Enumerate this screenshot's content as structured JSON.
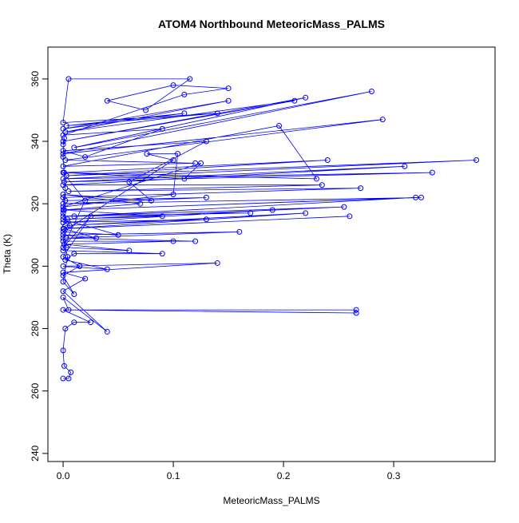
{
  "chart_data": {
    "type": "line",
    "title": "ATOM4 Northbound MeteoricMass_PALMS",
    "x_label": "MeteoricMass_PALMS",
    "y_label": "Theta (K)",
    "xlim": [
      -0.0138,
      0.392
    ],
    "ylim": [
      237.4,
      370.2
    ],
    "xticks": [
      {
        "value": 0,
        "label": "0.0"
      },
      0.1,
      0.2,
      0.3
    ],
    "yticks": [
      240,
      260,
      280,
      300,
      320,
      340,
      360
    ],
    "markers": true,
    "x": [
      0.0,
      0.005,
      0.007,
      0.001,
      0.0,
      0.002,
      0.01,
      0.025,
      0.0,
      0.266,
      0.266,
      0.005,
      0.0,
      0.04,
      0.0,
      0.02,
      0.0,
      0.14,
      0.0,
      0.04,
      0.002,
      0.01,
      0.09,
      0.0,
      0.003,
      0.06,
      0.001,
      0.1,
      0.0,
      0.12,
      0.003,
      0.16,
      0.0,
      0.03,
      0.001,
      0.26,
      0.0,
      0.22,
      0.002,
      0.13,
      0.0,
      0.19,
      0.004,
      0.255,
      0.0,
      0.17,
      0.01,
      0.32,
      0.001,
      0.325,
      0.0,
      0.13,
      0.002,
      0.0,
      0.27,
      0.005,
      0.235,
      0.0,
      0.31,
      0.001,
      0.335,
      0.0,
      0.375,
      0.003,
      0.24,
      0.001,
      0.23,
      0.196,
      0.0,
      0.12,
      0.002,
      0.29,
      0.0,
      0.28,
      0.01,
      0.22,
      0.0,
      0.21,
      0.002,
      0.15,
      0.0,
      0.11,
      0.003,
      0.14,
      0.0,
      0.005,
      0.115,
      0.075,
      0.04,
      0.1,
      0.15,
      0.11,
      0.0,
      0.09,
      0.02,
      0.0,
      0.13,
      0.06,
      0.08,
      0.0,
      0.07,
      0.0,
      0.09,
      0.0,
      0.05,
      0.0,
      0.1,
      0.076,
      0.104,
      0.1,
      0.0,
      0.125,
      0.11,
      0.0,
      0.02,
      0.0,
      0.025,
      0.0,
      0.015,
      0.0,
      0.01,
      0.0,
      0.004,
      0.0,
      0.006,
      0.0,
      0.002,
      0.0,
      0.001,
      0.0
    ],
    "series": [
      {
        "name": "MeteoricMass_PALMS",
        "color": "#0000ff",
        "values": [
          264,
          264,
          266,
          268,
          273,
          280,
          282,
          282,
          286,
          285,
          286,
          286,
          290,
          279,
          292,
          296,
          298,
          301,
          300,
          299,
          302,
          304,
          304,
          305,
          306,
          305,
          307,
          308,
          308,
          308,
          309,
          311,
          310,
          309,
          312,
          316,
          312,
          317,
          313,
          315,
          314,
          318,
          315,
          319,
          316,
          317,
          316,
          322,
          318,
          322,
          320,
          322,
          321,
          322,
          325,
          324,
          326,
          326,
          332,
          327,
          330,
          328,
          334,
          329,
          334,
          330,
          328,
          345,
          332,
          333,
          334,
          347,
          336,
          356,
          338,
          354,
          340,
          353,
          343,
          353,
          344,
          349,
          345,
          349,
          346,
          360,
          360,
          350,
          353,
          358,
          357,
          355,
          342,
          344,
          335,
          337,
          340,
          327,
          321,
          323,
          320,
          318,
          316,
          315,
          310,
          311,
          334,
          336,
          336,
          323,
          319,
          333,
          328,
          330,
          321,
          306,
          316,
          303,
          300,
          297,
          291,
          295,
          303,
          309,
          313,
          317,
          325,
          335,
          341,
          339
        ]
      }
    ]
  }
}
